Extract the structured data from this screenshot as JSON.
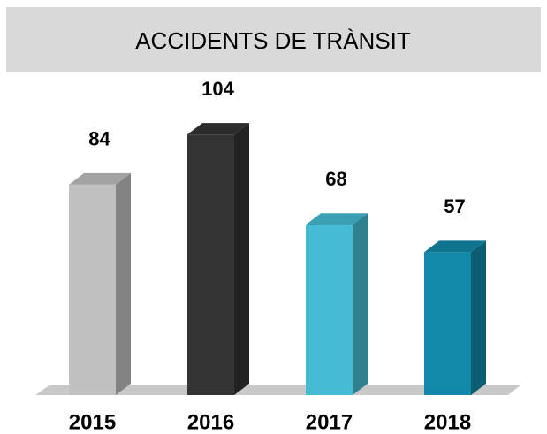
{
  "chart_data": {
    "type": "bar3d",
    "title": "ACCIDENTS DE TRÀNSIT",
    "categories": [
      "2015",
      "2016",
      "2017",
      "2018"
    ],
    "values": [
      84,
      104,
      68,
      57
    ],
    "colors": [
      "#c0c0c0",
      "#333333",
      "#45bcd3",
      "#1289a8"
    ]
  }
}
